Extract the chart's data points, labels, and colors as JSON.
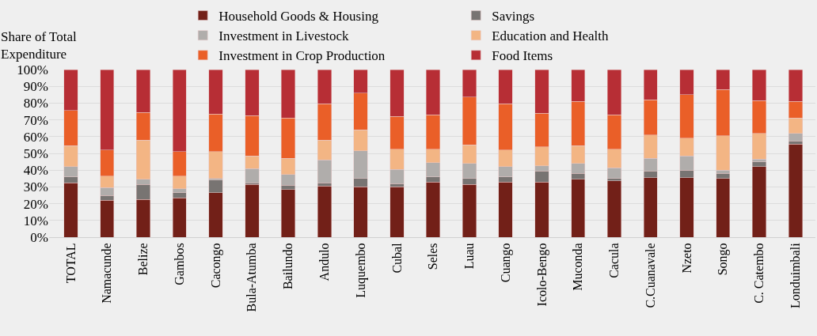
{
  "chart_data": {
    "type": "bar",
    "stacked": true,
    "ylabel": "Share of Total Expenditure",
    "categories": [
      "TOTAL",
      "Namacunde",
      "Belize",
      "Gambos",
      "Cacongo",
      "Bula-Atumba",
      "Bailundo",
      "Andulo",
      "Luquembo",
      "Cubal",
      "Seles",
      "Luau",
      "Cuango",
      "Icolo-Bengo",
      "Muconda",
      "Cacula",
      "C.Cuanavale",
      "Nzeto",
      "Songo",
      "C. Catembo",
      "Londuimbali"
    ],
    "series": [
      {
        "name": "Household Goods & Housing",
        "color": "#722018",
        "values": [
          32.5,
          22,
          22.5,
          23.5,
          26.5,
          31.5,
          28.5,
          30.5,
          30,
          30,
          33,
          31.5,
          33,
          33,
          34.5,
          33.5,
          35.5,
          35.5,
          35,
          42,
          55.5
        ]
      },
      {
        "name": "Savings",
        "color": "#787472",
        "values": [
          3.5,
          3,
          9,
          3,
          7.5,
          1,
          2.5,
          2,
          5,
          2,
          3,
          3.5,
          3,
          6.5,
          3.5,
          1.5,
          4,
          4.5,
          3,
          3,
          2
        ]
      },
      {
        "name": "Investment in Livestock",
        "color": "#b0adab",
        "values": [
          6,
          4.5,
          3,
          2.5,
          1,
          8.5,
          6.5,
          13.5,
          16.5,
          8.5,
          8.5,
          9,
          6,
          3,
          6,
          6.5,
          7.5,
          8.5,
          2,
          1.5,
          4.5
        ]
      },
      {
        "name": "Education and Health",
        "color": "#f3b584",
        "values": [
          12.5,
          7,
          23.5,
          7.5,
          16,
          7.5,
          9.5,
          12,
          12.5,
          12,
          8,
          11,
          10,
          11.5,
          10.5,
          11,
          14,
          10.5,
          20.5,
          15.5,
          9
        ]
      },
      {
        "name": "Investment in Crop Production",
        "color": "#ea5f28",
        "values": [
          21,
          15.5,
          16.5,
          14.5,
          22.5,
          24,
          24,
          21.5,
          22,
          19.5,
          20.5,
          28.5,
          27.5,
          20,
          26.5,
          20.5,
          21,
          26,
          27.5,
          19.5,
          10
        ]
      },
      {
        "name": "Food Items",
        "color": "#b72e35",
        "values": [
          24.5,
          48,
          25.5,
          49,
          26.5,
          27.5,
          29,
          20.5,
          14,
          28,
          27,
          16.5,
          20.5,
          26,
          19,
          27,
          18,
          15,
          12,
          18.5,
          19
        ]
      }
    ],
    "ylim": [
      0,
      100
    ],
    "yticks": [
      {
        "value": 0,
        "label": "0%"
      },
      {
        "value": 10,
        "label": "10%"
      },
      {
        "value": 20,
        "label": "20%"
      },
      {
        "value": 30,
        "label": "30%"
      },
      {
        "value": 40,
        "label": "40%"
      },
      {
        "value": 50,
        "label": "50%"
      },
      {
        "value": 60,
        "label": "60%"
      },
      {
        "value": 70,
        "label": "70%"
      },
      {
        "value": 80,
        "label": "80%"
      },
      {
        "value": 90,
        "label": "90%"
      },
      {
        "value": 100,
        "label": "100%"
      }
    ],
    "grid": "y",
    "legend": "top"
  }
}
